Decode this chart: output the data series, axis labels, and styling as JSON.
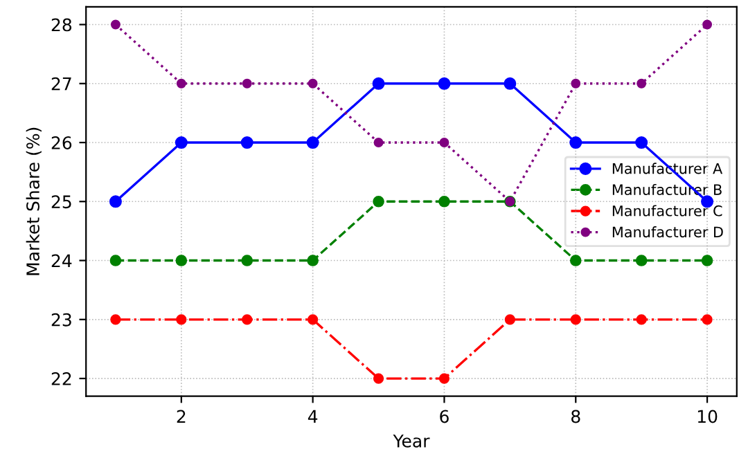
{
  "chart_data": {
    "type": "line",
    "xlabel": "Year",
    "ylabel": "Market Share (%)",
    "x": [
      1,
      2,
      3,
      4,
      5,
      6,
      7,
      8,
      9,
      10
    ],
    "series": [
      {
        "name": "Manufacturer A",
        "color": "#0000ff",
        "line_style": "solid",
        "values": [
          25,
          26,
          26,
          26,
          27,
          27,
          27,
          26,
          26,
          25
        ]
      },
      {
        "name": "Manufacturer B",
        "color": "#008000",
        "line_style": "dashed",
        "values": [
          24,
          24,
          24,
          24,
          25,
          25,
          25,
          24,
          24,
          24
        ]
      },
      {
        "name": "Manufacturer C",
        "color": "#ff0000",
        "line_style": "dashdot",
        "values": [
          23,
          23,
          23,
          23,
          22,
          22,
          23,
          23,
          23,
          23
        ]
      },
      {
        "name": "Manufacturer D",
        "color": "#800080",
        "line_style": "dotted",
        "values": [
          28,
          27,
          27,
          27,
          26,
          26,
          25,
          27,
          27,
          28
        ]
      }
    ],
    "marker": "circle",
    "xlim": [
      0.55,
      10.45
    ],
    "xticks": [
      2,
      4,
      6,
      8,
      10
    ],
    "ylim": [
      21.7,
      28.3
    ],
    "yticks": [
      22,
      23,
      24,
      25,
      26,
      27,
      28
    ],
    "grid": true,
    "legend": "right"
  }
}
